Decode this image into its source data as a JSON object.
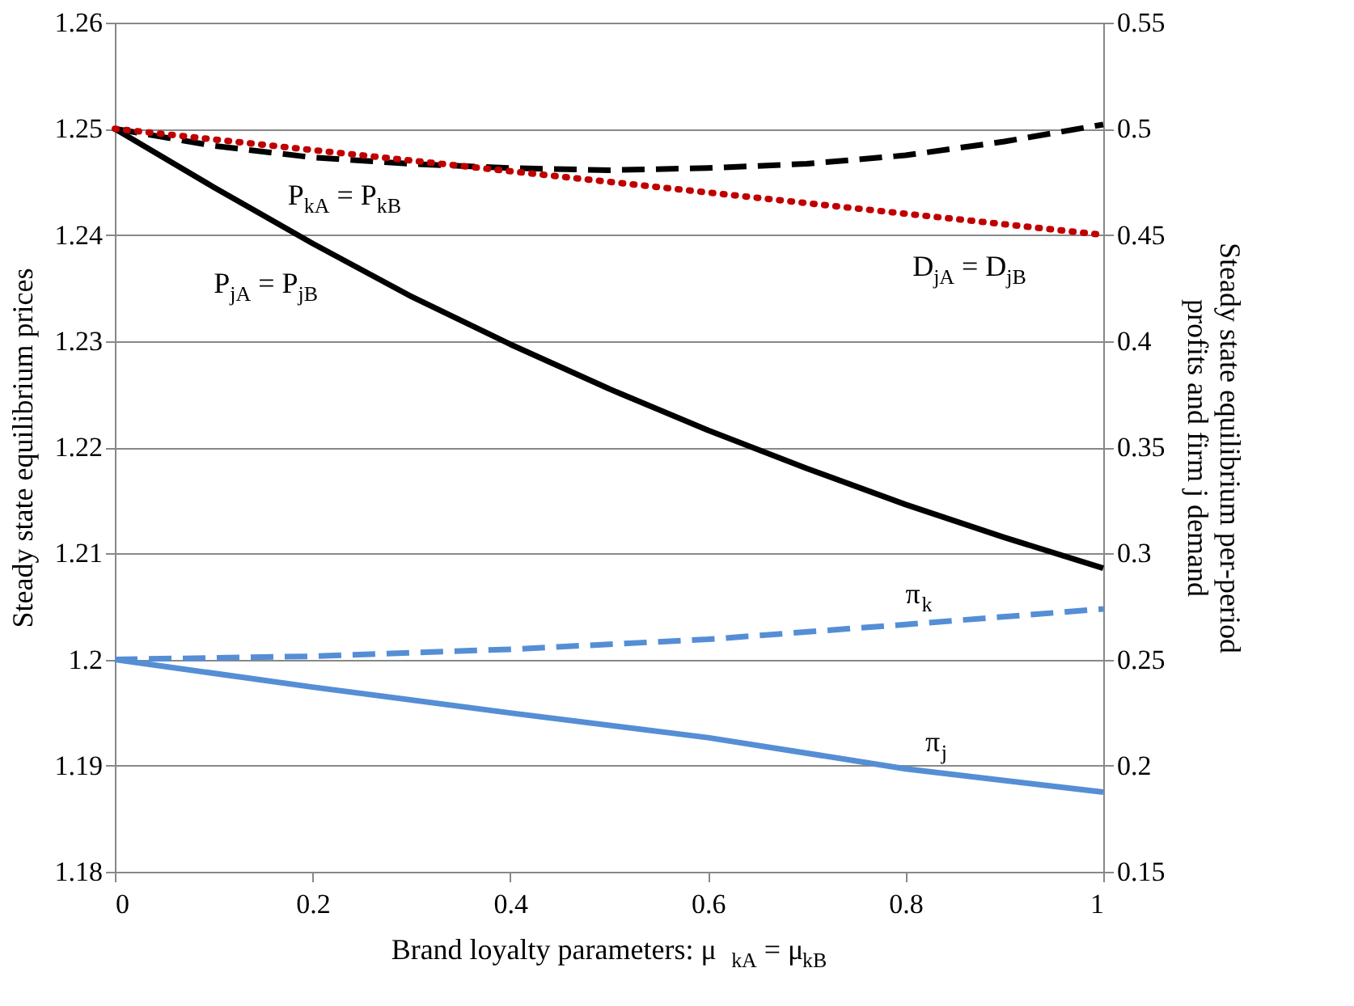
{
  "chart_data": {
    "type": "line",
    "xlabel": "Brand loyalty parameters: μ$_{kA}$ = μ$_{kB}$",
    "ylabel": "Steady state equilibrium prices",
    "y2label": "Steady state equilibrium per-period profits and firm j demand",
    "xlim": [
      0,
      1
    ],
    "xticks": [
      0,
      0.2,
      0.4,
      0.6,
      0.8,
      1
    ],
    "ylim": [
      1.18,
      1.26
    ],
    "yticks": [
      1.18,
      1.19,
      1.2,
      1.21,
      1.22,
      1.23,
      1.24,
      1.25,
      1.26
    ],
    "y2lim": [
      0.15,
      0.55
    ],
    "y2ticks": [
      0.15,
      0.2,
      0.25,
      0.3,
      0.35,
      0.4,
      0.45,
      0.5,
      0.55
    ],
    "grid": "y",
    "legend": false,
    "marker": "none",
    "series": [
      {
        "name": "P$_{kA}$ = P$_{kB}$",
        "color": "#000000",
        "line_style": "dashed",
        "x": [
          0,
          0.1,
          0.2,
          0.3,
          0.4,
          0.5,
          0.6,
          0.7,
          0.8,
          0.9,
          1
        ],
        "values": [
          1.25,
          1.2484,
          1.2473,
          1.2467,
          1.2463,
          1.2461,
          1.2463,
          1.2467,
          1.2475,
          1.2488,
          1.2504
        ]
      },
      {
        "name": "P$_{jA}$ = P$_{jB}$",
        "color": "#000000",
        "line_style": "solid",
        "x": [
          0,
          0.1,
          0.2,
          0.3,
          0.4,
          0.5,
          0.6,
          0.7,
          0.8,
          0.9,
          1
        ],
        "values": [
          1.25,
          1.2445,
          1.2392,
          1.2342,
          1.2297,
          1.2255,
          1.2216,
          1.218,
          1.2146,
          1.2115,
          1.2086
        ]
      },
      {
        "name": "D$_{jA}$ = D$_{jB}$",
        "color": "#c00000",
        "line_style": "dotted",
        "axis": "y2",
        "x": [
          0,
          0.2,
          0.4,
          0.6,
          0.8,
          1
        ],
        "values": [
          0.5,
          0.49,
          0.48,
          0.47,
          0.46,
          0.45
        ]
      },
      {
        "name": "π$_{k}$",
        "color": "#558ed5",
        "line_style": "dashed",
        "axis": "y2",
        "x": [
          0,
          0.2,
          0.4,
          0.6,
          0.8,
          1
        ],
        "values": [
          0.25,
          0.2515,
          0.2548,
          0.2595,
          0.2665,
          0.2738
        ]
      },
      {
        "name": "π$_{j}$",
        "color": "#558ed5",
        "line_style": "solid",
        "axis": "y2",
        "x": [
          0,
          0.2,
          0.4,
          0.6,
          0.8,
          1
        ],
        "values": [
          0.25,
          0.237,
          0.2248,
          0.2132,
          0.1985,
          0.1875
        ]
      }
    ]
  }
}
